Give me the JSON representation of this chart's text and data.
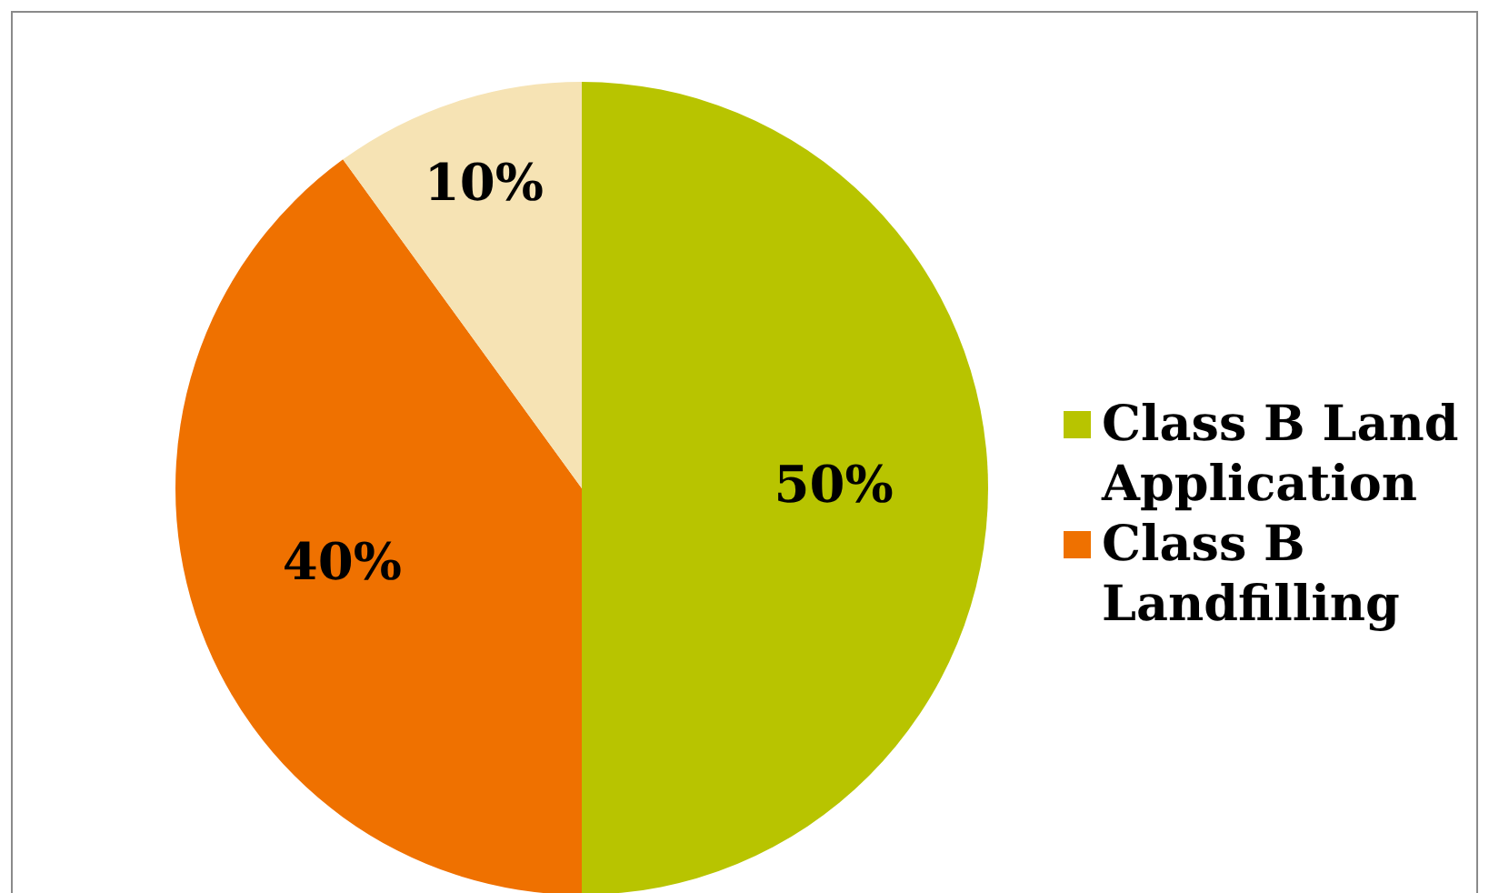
{
  "chart_data": {
    "type": "pie",
    "categories": [
      "Class B Land Application",
      "Class B Landfilling",
      null
    ],
    "values": [
      50,
      40,
      10
    ],
    "colors": [
      "#b8c400",
      "#ef7100",
      "#f6e3b4"
    ],
    "value_labels": [
      "50%",
      "40%",
      "10%"
    ],
    "legend": "right"
  }
}
